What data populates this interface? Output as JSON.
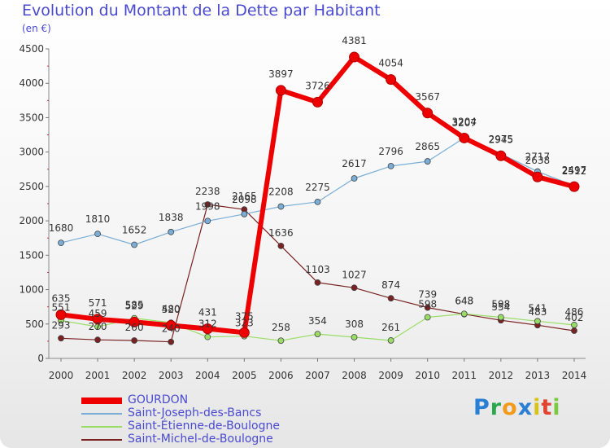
{
  "chart_data": {
    "type": "line",
    "title": "Evolution du Montant de la Dette par Habitant",
    "subtitle": "(en €)",
    "x": [
      "2000",
      "2001",
      "2002",
      "2003",
      "2004",
      "2005",
      "2006",
      "2007",
      "2008",
      "2009",
      "2010",
      "2011",
      "2012",
      "2013",
      "2014"
    ],
    "y_ticks": [
      "0",
      "500",
      "1000",
      "1500",
      "2000",
      "2500",
      "3000",
      "3500",
      "4000",
      "4500"
    ],
    "ylim": [
      0,
      4500
    ],
    "grid": false,
    "legend_position": "bottom-left",
    "series": [
      {
        "name": "GOURDON",
        "color": "#ee0000",
        "values": [
          635,
          571,
          529,
          480,
          431,
          375,
          3897,
          3726,
          4381,
          4054,
          3567,
          3204,
          2945,
          2638,
          2497
        ]
      },
      {
        "name": "Saint-Joseph-des-Bancs",
        "color": "#7aaed6",
        "values": [
          1680,
          1810,
          1652,
          1838,
          1998,
          2098,
          2208,
          2275,
          2617,
          2796,
          2865,
          3207,
          2975,
          2717,
          2512
        ]
      },
      {
        "name": "Saint-Étienne-de-Boulogne",
        "color": "#99dd66",
        "values": [
          551,
          459,
          585,
          520,
          312,
          323,
          258,
          354,
          308,
          261,
          598,
          648,
          598,
          541,
          486
        ]
      },
      {
        "name": "Saint-Michel-de-Boulogne",
        "color": "#7a2222",
        "values": [
          293,
          270,
          260,
          240,
          2238,
          2165,
          1636,
          1103,
          1027,
          874,
          739,
          643,
          554,
          483,
          402
        ]
      }
    ]
  },
  "logo_text": "Proxiti"
}
